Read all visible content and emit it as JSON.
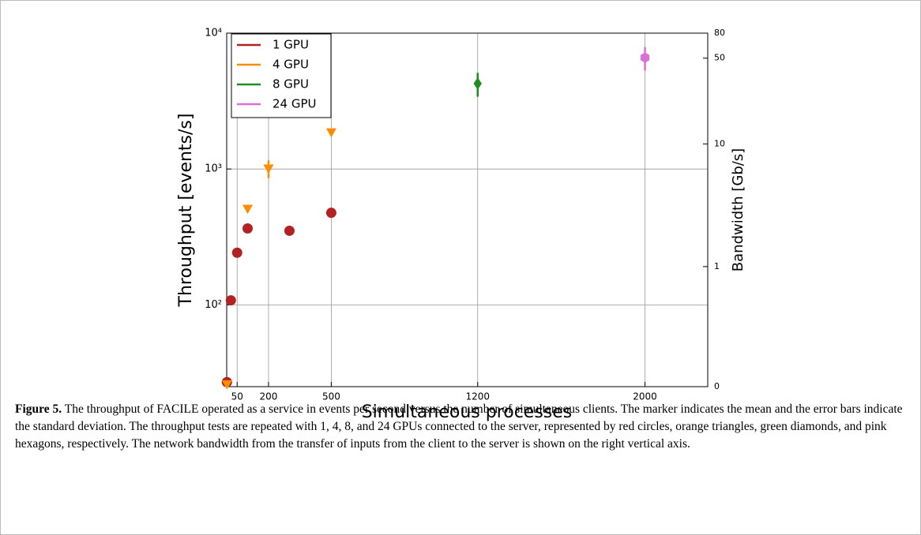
{
  "chart_data": {
    "type": "scatter",
    "xlabel": "Simultaneous processes",
    "ylabel": "Throughput [events/s]",
    "y2label": "Bandwidth [Gb/s]",
    "xlim": [
      0,
      2300
    ],
    "xticks": [
      50,
      200,
      500,
      1200,
      2000
    ],
    "ylim": [
      25,
      10000
    ],
    "yscale": "log",
    "yticks": [
      {
        "value": 100,
        "label": "10²"
      },
      {
        "value": 1000,
        "label": "10³"
      },
      {
        "value": 10000,
        "label": "10⁴"
      }
    ],
    "y2lim": [
      0.105,
      80
    ],
    "y2scale": "log",
    "y2ticks": [
      {
        "value": 0.105,
        "label": "0"
      },
      1,
      10,
      50,
      80
    ],
    "grid": true,
    "legend": "upper left",
    "series": [
      {
        "name": "1 GPU",
        "color": "#b22222",
        "marker": "circle",
        "x": [
          1,
          20,
          50,
          100,
          300,
          500
        ],
        "values": [
          27,
          108,
          242,
          365,
          351,
          476
        ],
        "errors": [
          null,
          null,
          null,
          null,
          null,
          null
        ]
      },
      {
        "name": "4 GPU",
        "color": "#ff8c00",
        "marker": "triangle-down",
        "x": [
          1,
          100,
          200,
          500
        ],
        "values": [
          26,
          509,
          1007,
          1860
        ],
        "errors": [
          null,
          null,
          150,
          null
        ]
      },
      {
        "name": "8 GPU",
        "color": "#228b22",
        "marker": "diamond",
        "x": [
          1200
        ],
        "values": [
          4255
        ],
        "errors": [
          850
        ]
      },
      {
        "name": "24 GPU",
        "color": "#da70d6",
        "marker": "hexagon",
        "x": [
          2000
        ],
        "values": [
          6610
        ],
        "errors": [
          1300
        ]
      }
    ]
  },
  "caption": {
    "label": "Figure 5.",
    "text": " The throughput of FACILE operated as a service in events per second versus the number of simultaneous clients. The marker indicates the mean and the error bars indicate the standard deviation. The throughput tests are repeated with 1, 4, 8, and 24 GPUs connected to the server, represented by red circles, orange triangles, green diamonds, and pink hexagons, respectively. The network bandwidth from the transfer of inputs from the client to the server is shown on the right vertical axis."
  }
}
